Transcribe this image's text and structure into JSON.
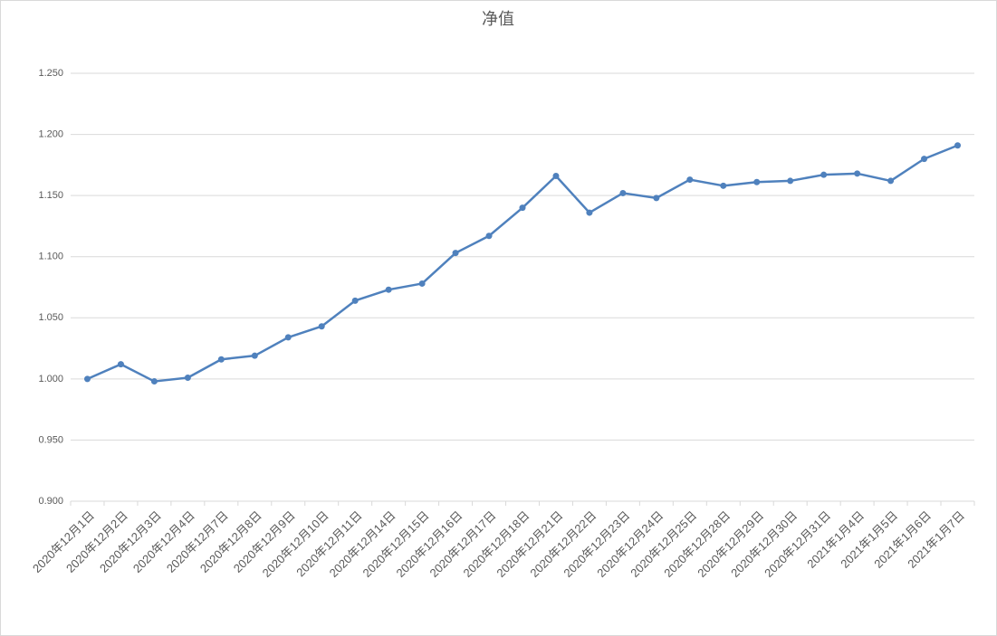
{
  "chart_data": {
    "type": "line",
    "title": "净值",
    "categories": [
      "2020年12月1日",
      "2020年12月2日",
      "2020年12月3日",
      "2020年12月4日",
      "2020年12月7日",
      "2020年12月8日",
      "2020年12月9日",
      "2020年12月10日",
      "2020年12月11日",
      "2020年12月14日",
      "2020年12月15日",
      "2020年12月16日",
      "2020年12月17日",
      "2020年12月18日",
      "2020年12月21日",
      "2020年12月22日",
      "2020年12月23日",
      "2020年12月24日",
      "2020年12月25日",
      "2020年12月28日",
      "2020年12月29日",
      "2020年12月30日",
      "2020年12月31日",
      "2021年1月4日",
      "2021年1月5日",
      "2021年1月6日",
      "2021年1月7日"
    ],
    "values": [
      1.0,
      1.012,
      0.998,
      1.001,
      1.016,
      1.019,
      1.034,
      1.043,
      1.064,
      1.073,
      1.078,
      1.103,
      1.117,
      1.14,
      1.166,
      1.136,
      1.152,
      1.148,
      1.163,
      1.158,
      1.161,
      1.162,
      1.167,
      1.168,
      1.162,
      1.18,
      1.191
    ],
    "color": "#4f81bd",
    "ylim": [
      0.9,
      1.25
    ],
    "yticks": [
      {
        "value": 0.9,
        "label": "0.900"
      },
      {
        "value": 0.95,
        "label": "0.950"
      },
      {
        "value": 1.0,
        "label": "1.000"
      },
      {
        "value": 1.05,
        "label": "1.050"
      },
      {
        "value": 1.1,
        "label": "1.100"
      },
      {
        "value": 1.15,
        "label": "1.150"
      },
      {
        "value": 1.2,
        "label": "1.200"
      },
      {
        "value": 1.25,
        "label": "1.250"
      }
    ],
    "grid": true
  }
}
